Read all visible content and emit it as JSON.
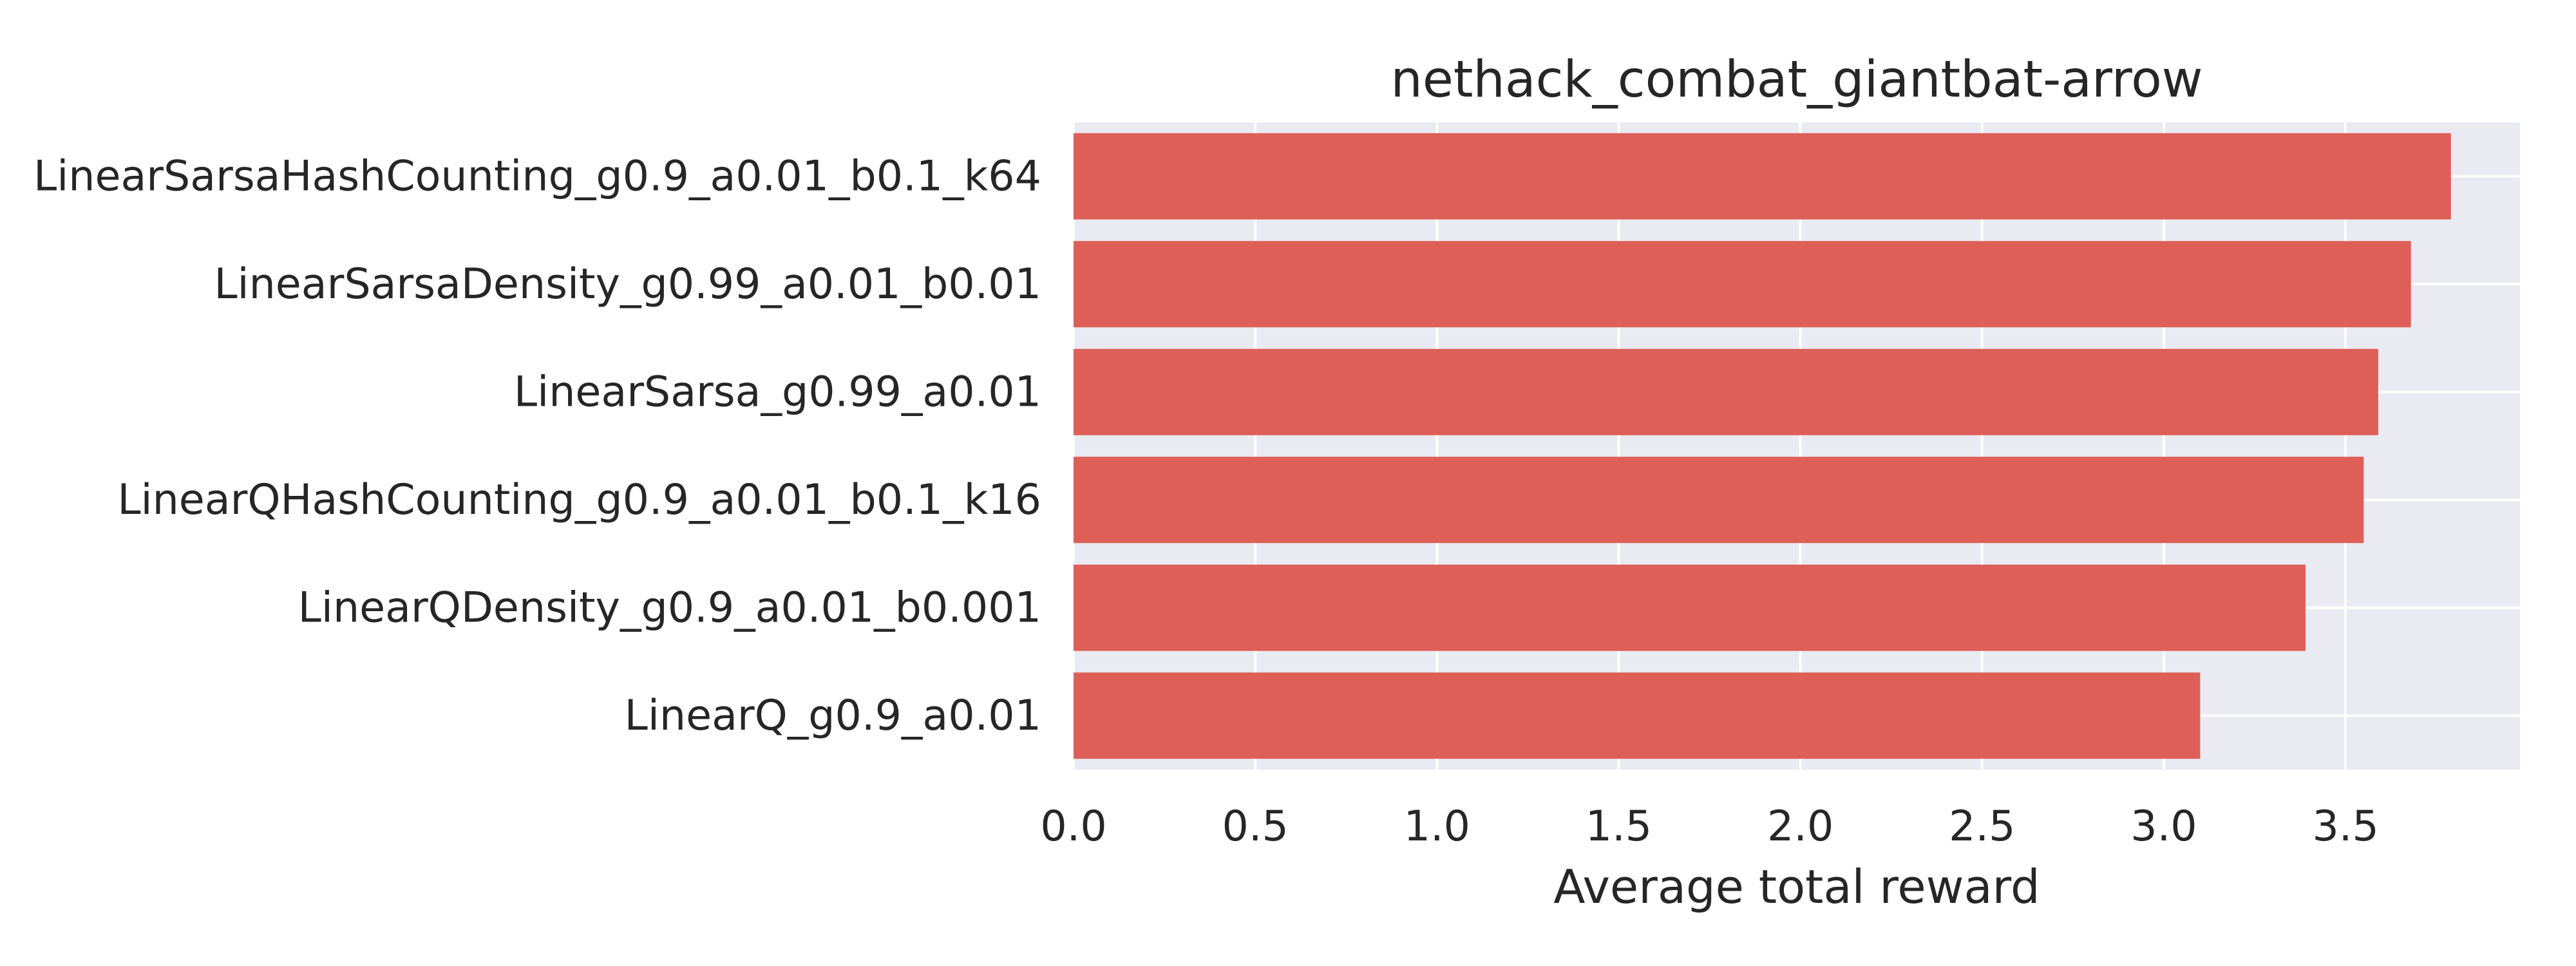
{
  "chart_data": {
    "type": "bar",
    "orientation": "horizontal",
    "title": "nethack_combat_giantbat-arrow",
    "xlabel": "Average total reward",
    "ylabel": "",
    "categories": [
      "LinearSarsaHashCounting_g0.9_a0.01_b0.1_k64",
      "LinearSarsaDensity_g0.99_a0.01_b0.01",
      "LinearSarsa_g0.99_a0.01",
      "LinearQHashCounting_g0.9_a0.01_b0.1_k16",
      "LinearQDensity_g0.9_a0.01_b0.001",
      "LinearQ_g0.9_a0.01"
    ],
    "values": [
      3.79,
      3.68,
      3.59,
      3.55,
      3.39,
      3.1
    ],
    "xlim": [
      0.0,
      3.98
    ],
    "xticks": [
      "0.0",
      "0.5",
      "1.0",
      "1.5",
      "2.0",
      "2.5",
      "3.0",
      "3.5"
    ],
    "grid": true,
    "bar_color": "#dd5f57",
    "plot_background": "#eaeaf2",
    "grid_color": "#ffffff"
  }
}
